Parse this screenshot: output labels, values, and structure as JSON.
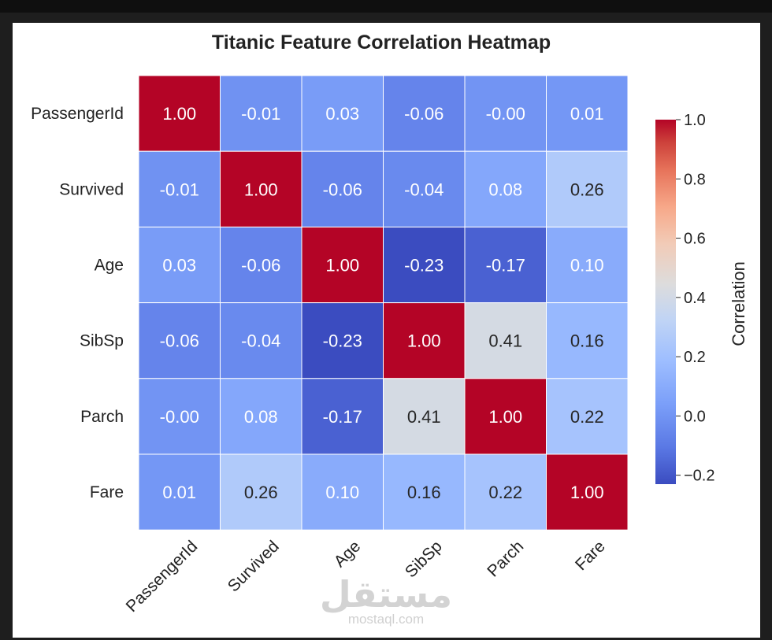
{
  "chart_data": {
    "type": "heatmap",
    "title": "Titanic Feature Correlation Heatmap",
    "rows": [
      "PassengerId",
      "Survived",
      "Age",
      "SibSp",
      "Parch",
      "Fare"
    ],
    "columns": [
      "PassengerId",
      "Survived",
      "Age",
      "SibSp",
      "Parch",
      "Fare"
    ],
    "values": [
      [
        1.0,
        -0.01,
        0.03,
        -0.06,
        -0.0,
        0.01
      ],
      [
        -0.01,
        1.0,
        -0.06,
        -0.04,
        0.08,
        0.26
      ],
      [
        0.03,
        -0.06,
        1.0,
        -0.23,
        -0.17,
        0.1
      ],
      [
        -0.06,
        -0.04,
        -0.23,
        1.0,
        0.41,
        0.16
      ],
      [
        -0.0,
        0.08,
        -0.17,
        0.41,
        1.0,
        0.22
      ],
      [
        0.01,
        0.26,
        0.1,
        0.16,
        0.22,
        1.0
      ]
    ],
    "value_format": "0.00",
    "colormap": "coolwarm",
    "vmin": -0.23,
    "vmax": 1.0,
    "colorbar": {
      "label": "Correlation",
      "ticks": [
        "1.0",
        "0.8",
        "0.6",
        "0.4",
        "0.2",
        "0.0",
        "−0.2"
      ]
    }
  },
  "watermark": {
    "arabic": "مستقل",
    "text": "mostaql.com"
  },
  "colors": {
    "page_background": "#1e1e1e",
    "figure_background": "#ffffff",
    "cmap_low": "#3b4cc0",
    "cmap_mid": "#dddddd",
    "cmap_high": "#b40426"
  }
}
